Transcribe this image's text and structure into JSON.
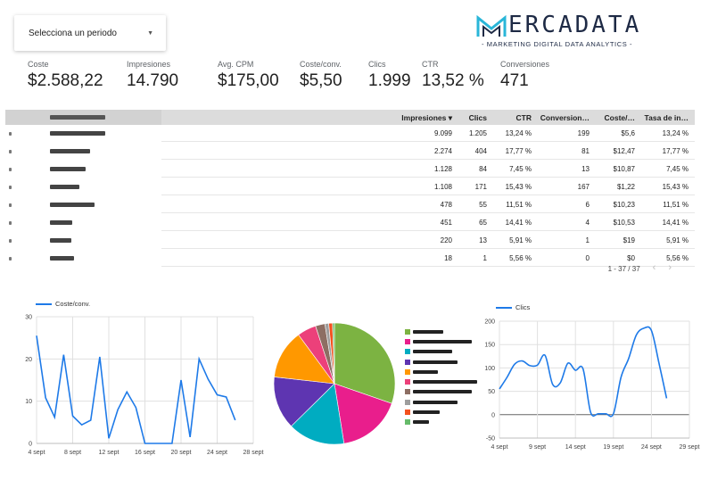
{
  "period_select": {
    "label": "Selecciona un periodo"
  },
  "logo": {
    "word": "ERCADATA",
    "tagline": "- MARKETING  DIGITAL  DATA ANALYTICS -"
  },
  "kpis": [
    {
      "label": "Coste",
      "value": "$2.588,22"
    },
    {
      "label": "Impresiones",
      "value": "14.790"
    },
    {
      "label": "Avg. CPM",
      "value": "$175,00"
    },
    {
      "label": "Coste/conv.",
      "value": "$5,50"
    },
    {
      "label": "Clics",
      "value": "1.999"
    },
    {
      "label": "CTR",
      "value": "13,52 %"
    },
    {
      "label": "Conversiones",
      "value": "471"
    }
  ],
  "table": {
    "columns": [
      "Impresiones ▾",
      "Clics",
      "CTR",
      "Conversion…",
      "Coste/…",
      "Tasa de in…"
    ],
    "rows": [
      [
        "9.099",
        "1.205",
        "13,24 %",
        "199",
        "$5,6",
        "13,24 %"
      ],
      [
        "2.274",
        "404",
        "17,77 %",
        "81",
        "$12,47",
        "17,77 %"
      ],
      [
        "1.128",
        "84",
        "7,45 %",
        "13",
        "$10,87",
        "7,45 %"
      ],
      [
        "1.108",
        "171",
        "15,43 %",
        "167",
        "$1,22",
        "15,43 %"
      ],
      [
        "478",
        "55",
        "11,51 %",
        "6",
        "$10,23",
        "11,51 %"
      ],
      [
        "451",
        "65",
        "14,41 %",
        "4",
        "$10,53",
        "14,41 %"
      ],
      [
        "220",
        "13",
        "5,91 %",
        "1",
        "$19",
        "5,91 %"
      ],
      [
        "18",
        "1",
        "5,56 %",
        "0",
        "$0",
        "5,56 %"
      ]
    ],
    "pagination": "1 - 37 / 37",
    "prev_icon": "chevron-left-icon",
    "next_icon": "chevron-right-icon"
  },
  "chart_data": [
    {
      "type": "line",
      "series": [
        {
          "name": "Coste/conv.",
          "values": [
            25.5,
            10.8,
            6.2,
            21,
            6.5,
            4.4,
            5.5,
            20.5,
            1.2,
            8,
            12.2,
            8.5,
            0,
            0,
            0,
            0,
            15,
            1.5,
            20,
            15.2,
            11.5,
            11,
            5.5
          ]
        }
      ],
      "x": [
        "4 sept",
        "5 sept",
        "6 sept",
        "7 sept",
        "8 sept",
        "9 sept",
        "10 sept",
        "11 sept",
        "12 sept",
        "13 sept",
        "14 sept",
        "15 sept",
        "16 sept",
        "17 sept",
        "18 sept",
        "19 sept",
        "20 sept",
        "21 sept",
        "22 sept",
        "23 sept",
        "24 sept",
        "25 sept",
        "26 sept"
      ],
      "xticks": [
        "4 sept",
        "8 sept",
        "12 sept",
        "16 sept",
        "20 sept",
        "24 sept",
        "28 sept"
      ],
      "yticks": [
        "0",
        "10",
        "20",
        "30"
      ],
      "ylim": [
        0,
        30
      ],
      "legend": "top-left",
      "grid": true,
      "color": "#1e7ae8"
    },
    {
      "type": "pie",
      "values": [
        30,
        17,
        15,
        14,
        13,
        5,
        2.5,
        1,
        1,
        0.5
      ],
      "colors": [
        "#7cb342",
        "#e91e8c",
        "#00acc1",
        "#5e35b1",
        "#ff9800",
        "#ec407a",
        "#8d6e63",
        "#9e9e9e",
        "#f4511e",
        "#66bb6a"
      ],
      "legend": "right"
    },
    {
      "type": "line",
      "series": [
        {
          "name": "Clics",
          "values": [
            55,
            80,
            108,
            115,
            105,
            106,
            127,
            65,
            68,
            110,
            95,
            98,
            5,
            2,
            2,
            2,
            80,
            120,
            170,
            185,
            180,
            110,
            35
          ]
        }
      ],
      "x": [
        "4 sept",
        "5 sept",
        "6 sept",
        "7 sept",
        "8 sept",
        "9 sept",
        "10 sept",
        "11 sept",
        "12 sept",
        "13 sept",
        "14 sept",
        "15 sept",
        "16 sept",
        "17 sept",
        "18 sept",
        "19 sept",
        "20 sept",
        "21 sept",
        "22 sept",
        "23 sept",
        "24 sept",
        "25 sept",
        "26 sept"
      ],
      "xticks": [
        "4 sept",
        "9 sept",
        "14 sept",
        "19 sept",
        "24 sept",
        "29 sept"
      ],
      "yticks": [
        "-50",
        "0",
        "50",
        "100",
        "150",
        "200"
      ],
      "ylim": [
        -50,
        200
      ],
      "legend": "top-left",
      "grid": true,
      "color": "#1e7ae8"
    }
  ]
}
